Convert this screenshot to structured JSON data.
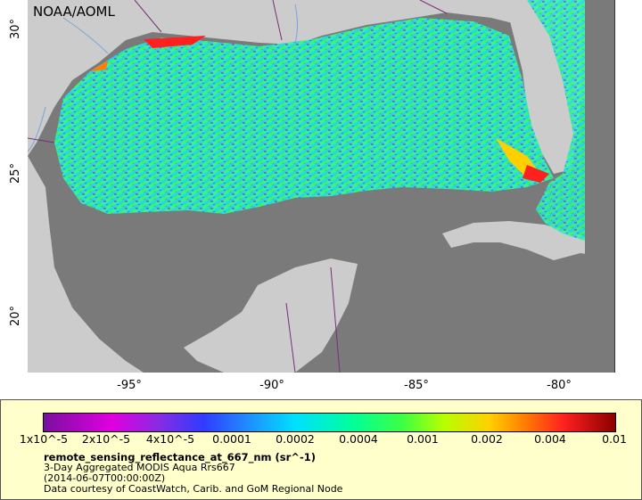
{
  "map": {
    "credit": "NOAA/AOML",
    "colors": {
      "land": "#cccccc",
      "nodata": "#7a7a7a",
      "border": "#7b2d7b",
      "river": "#6fa8dc"
    },
    "x_ticks": [
      "-95°",
      "-90°",
      "-85°",
      "-80°"
    ],
    "y_ticks": [
      "30°",
      "25°",
      "20°"
    ]
  },
  "legend": {
    "colorbar_labels": [
      "1x10^-5",
      "2x10^-5",
      "4x10^-5",
      "0.0001",
      "0.0002",
      "0.0004",
      "0.001",
      "0.002",
      "0.004",
      "0.01"
    ],
    "title": "remote_sensing_reflectance_at_667_nm (sr^-1)",
    "description": "3-Day Aggregated MODIS Aqua Rrs667",
    "date": "(2014-06-07T00:00:00Z)",
    "courtesy": "Data courtesy of CoastWatch, Carib. and GoM Regional Node"
  }
}
